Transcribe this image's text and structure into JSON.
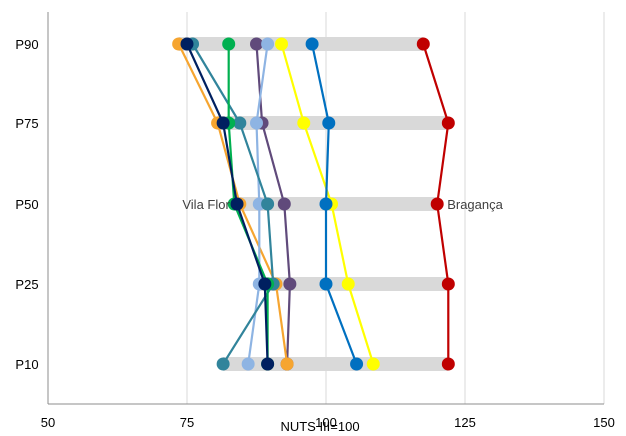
{
  "chart_data": {
    "type": "line",
    "xlabel": "NUTS III=100",
    "ylabel": "",
    "xlim": [
      50,
      150
    ],
    "x_ticks": [
      "50",
      "75",
      "100",
      "125",
      "150"
    ],
    "x_tick_values": [
      50,
      75,
      100,
      125,
      150
    ],
    "categories": [
      "P90",
      "P75",
      "P50",
      "P25",
      "P10"
    ],
    "grid": "vertical",
    "range_bars": [
      {
        "category": "P90",
        "min": 73.5,
        "max": 117.5
      },
      {
        "category": "P75",
        "min": 80.5,
        "max": 122.0
      },
      {
        "category": "P50",
        "min": 83.5,
        "max": 120.0
      },
      {
        "category": "P25",
        "min": 88.0,
        "max": 122.0
      },
      {
        "category": "P10",
        "min": 81.5,
        "max": 122.0
      }
    ],
    "annotations": [
      {
        "text": "Vila Flor",
        "category": "P50",
        "x": 84.5,
        "anchor": "end"
      },
      {
        "text": "Bragança",
        "category": "P50",
        "x": 120.0,
        "anchor": "start"
      }
    ],
    "series": [
      {
        "color": "#C00000",
        "values": [
          117.5,
          122.0,
          120.0,
          122.0,
          122.0
        ]
      },
      {
        "color": "#FFFF00",
        "values": [
          92.0,
          96.0,
          101.0,
          104.0,
          108.5
        ]
      },
      {
        "color": "#0070C0",
        "values": [
          97.5,
          100.5,
          100.0,
          100.0,
          105.5
        ]
      },
      {
        "color": "#604A7B",
        "values": [
          87.5,
          88.5,
          92.5,
          93.5,
          93.0
        ]
      },
      {
        "color": "#F6A530",
        "values": [
          73.5,
          80.5,
          84.5,
          91.0,
          93.0
        ]
      },
      {
        "color": "#8EB4E3",
        "values": [
          89.5,
          87.5,
          88.0,
          88.0,
          86.0
        ]
      },
      {
        "color": "#31849B",
        "values": [
          76.0,
          84.5,
          89.5,
          90.5,
          81.5
        ]
      },
      {
        "color": "#00B050",
        "values": [
          82.5,
          82.5,
          83.5,
          89.5,
          89.5
        ]
      },
      {
        "color": "#002060",
        "values": [
          75.0,
          81.5,
          84.0,
          89.0,
          89.5
        ]
      }
    ]
  }
}
